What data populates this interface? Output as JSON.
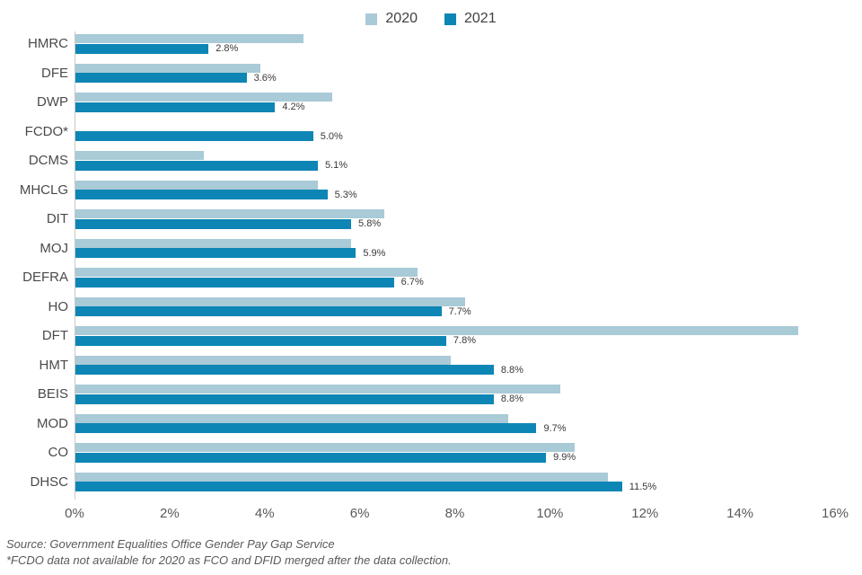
{
  "chart_data": {
    "type": "bar",
    "orientation": "horizontal",
    "categories": [
      "HMRC",
      "DFE",
      "DWP",
      "FCDO*",
      "DCMS",
      "MHCLG",
      "DIT",
      "MOJ",
      "DEFRA",
      "HO",
      "DFT",
      "HMT",
      "BEIS",
      "MOD",
      "CO",
      "DHSC"
    ],
    "series": [
      {
        "name": "2020",
        "color": "#a9cad7",
        "values": [
          4.8,
          3.9,
          5.4,
          null,
          2.7,
          5.1,
          6.5,
          5.8,
          7.2,
          8.2,
          15.2,
          7.9,
          10.2,
          9.1,
          10.5,
          11.2
        ]
      },
      {
        "name": "2021",
        "color": "#0d86b5",
        "values": [
          2.8,
          3.6,
          4.2,
          5.0,
          5.1,
          5.3,
          5.8,
          5.9,
          6.7,
          7.7,
          7.8,
          8.8,
          8.8,
          9.7,
          9.9,
          11.5
        ]
      }
    ],
    "data_labels": [
      "2.8%",
      "3.6%",
      "4.2%",
      "5.0%",
      "5.1%",
      "5.3%",
      "5.8%",
      "5.9%",
      "6.7%",
      "7.7%",
      "7.8%",
      "8.8%",
      "8.8%",
      "9.7%",
      "9.9%",
      "11.5%"
    ],
    "x_ticks": [
      "0%",
      "2%",
      "4%",
      "6%",
      "8%",
      "10%",
      "12%",
      "14%",
      "16%"
    ],
    "xlim": [
      0,
      16
    ],
    "grid": false,
    "legend_position": "top-center",
    "axis_line_color": "#c9c9c9"
  },
  "notes": {
    "source": "Source: Government  Equalities Office Gender Pay Gap Service",
    "footnote": "*FCDO  data not available for 2020 as FCO and DFID merged  after the data collection."
  }
}
